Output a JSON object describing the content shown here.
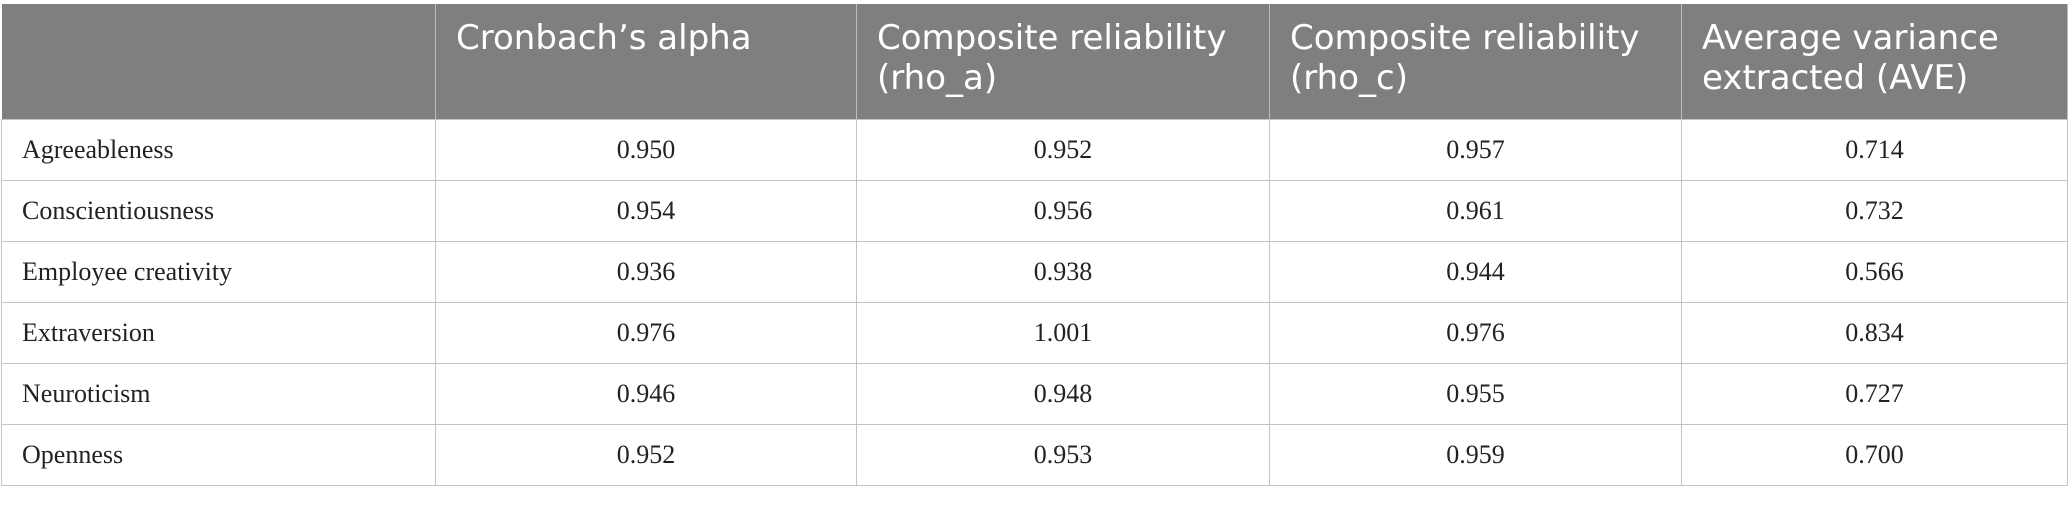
{
  "table": {
    "header": [
      "Cronbach’s alpha",
      "Composite reliability (rho_a)",
      "Composite reliability (rho_c)",
      "Average variance extracted (AVE)"
    ],
    "rows": [
      [
        "Agreeableness",
        "0.950",
        "0.952",
        "0.957",
        "0.714"
      ],
      [
        "Conscientiousness",
        "0.954",
        "0.956",
        "0.961",
        "0.732"
      ],
      [
        "Employee creativity",
        "0.936",
        "0.938",
        "0.944",
        "0.566"
      ],
      [
        "Extraversion",
        "0.976",
        "1.001",
        "0.976",
        "0.834"
      ],
      [
        "Neuroticism",
        "0.946",
        "0.948",
        "0.955",
        "0.727"
      ],
      [
        "Openness",
        "0.952",
        "0.953",
        "0.959",
        "0.700"
      ]
    ]
  }
}
